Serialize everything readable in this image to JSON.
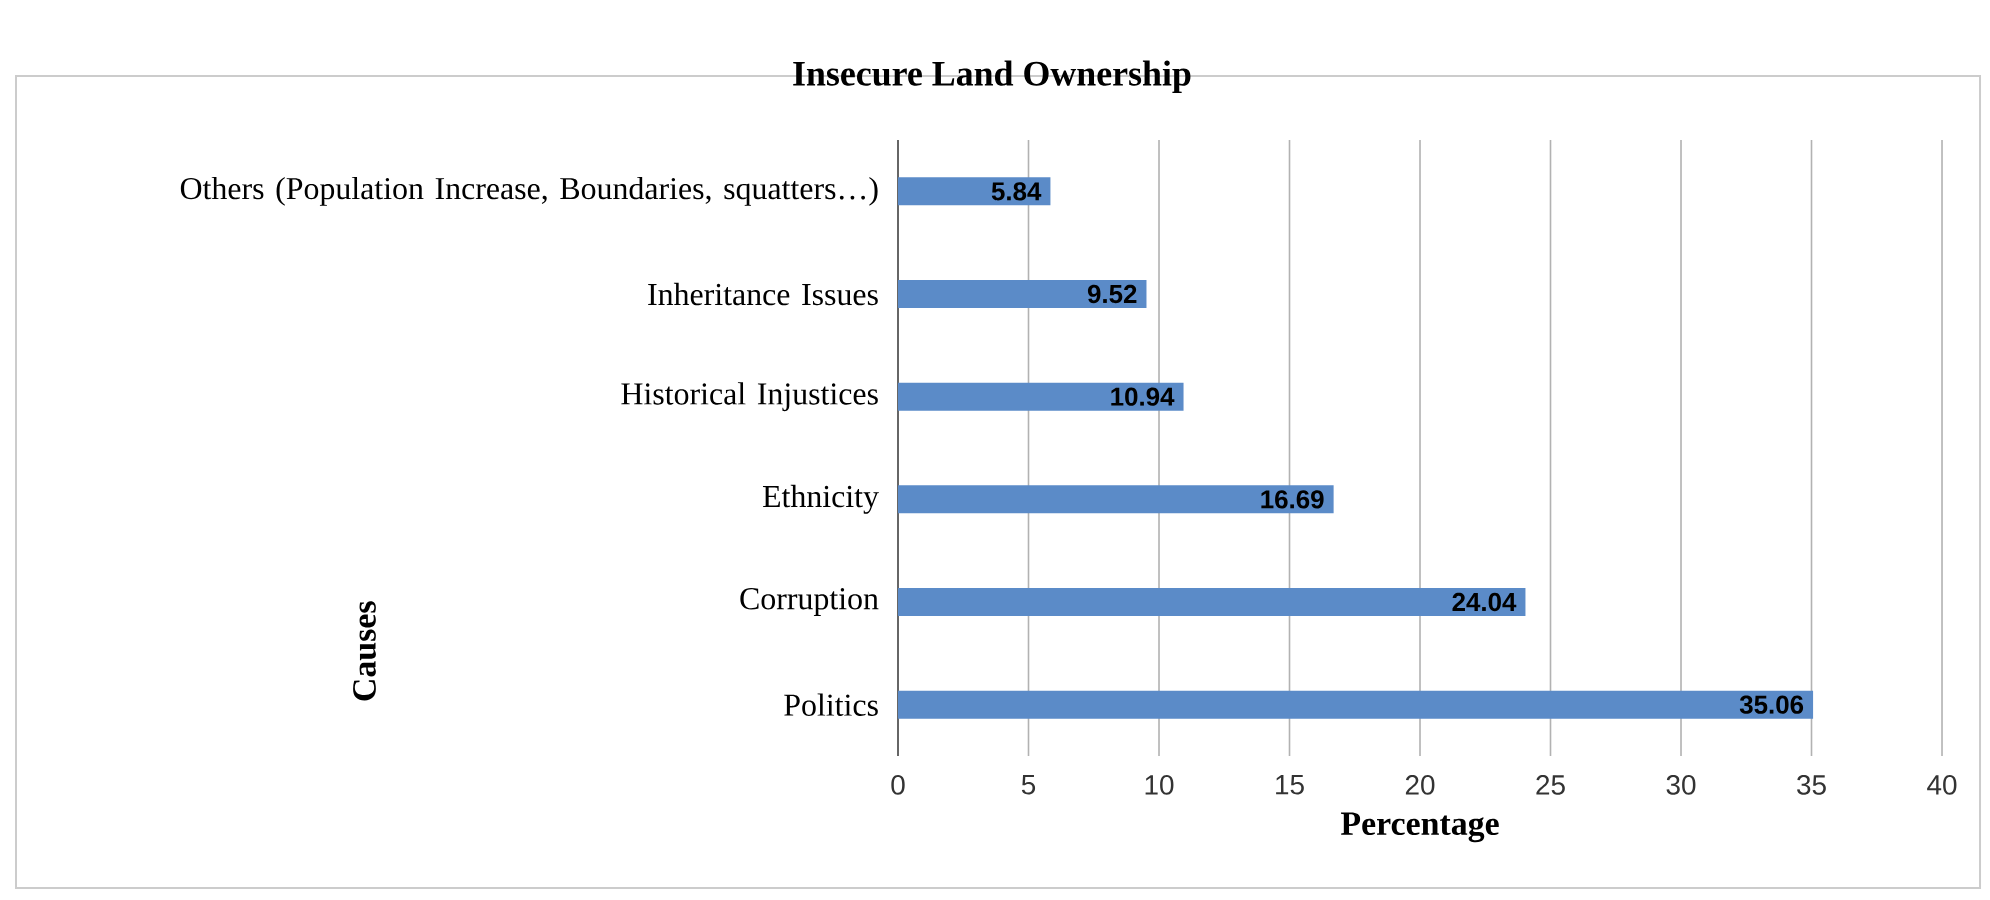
{
  "chart_data": {
    "type": "bar",
    "orientation": "horizontal",
    "title": "Insecure Land Ownership",
    "xlabel": "Percentage",
    "ylabel": "Causes",
    "categories": [
      "Others (Population Increase, Boundaries, squatters…)",
      "Inheritance Issues",
      "Historical Injustices",
      "Ethnicity",
      "Corruption",
      "Politics"
    ],
    "values": [
      5.84,
      9.52,
      10.94,
      16.69,
      24.04,
      35.06
    ],
    "color": "#5b8bc8",
    "xlim": [
      0,
      40
    ],
    "xticks": [
      0,
      5,
      10,
      15,
      20,
      25,
      30,
      35,
      40
    ],
    "grid": "x",
    "data_labels": true
  }
}
